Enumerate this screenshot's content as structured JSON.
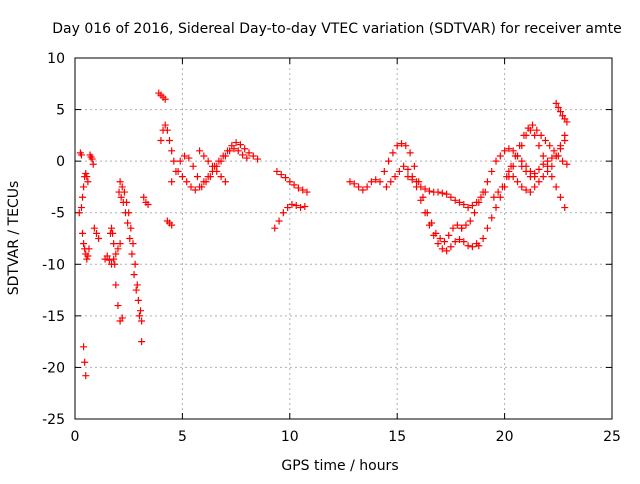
{
  "chart_data": {
    "type": "scatter",
    "title": "Day 016 of 2016, Sidereal Day-to-day VTEC variation (SDTVAR) for receiver amte",
    "xlabel": "GPS time / hours",
    "ylabel": "SDTVAR / TECUs",
    "xlim": [
      0,
      25
    ],
    "ylim": [
      -25,
      10
    ],
    "x_ticks": [
      0,
      5,
      10,
      15,
      20,
      25
    ],
    "y_ticks": [
      -25,
      -20,
      -15,
      -10,
      -5,
      0,
      5,
      10
    ],
    "grid": true,
    "marker": "+",
    "color": "#ff0000",
    "series": [
      {
        "name": "s1",
        "x": [
          0.2,
          0.3,
          0.35,
          0.4,
          0.45,
          0.5,
          0.55,
          0.6
        ],
        "y": [
          -5,
          -4.5,
          -3.5,
          -2.5,
          -1.5,
          -1.2,
          -1.5,
          -2
        ]
      },
      {
        "name": "s2",
        "x": [
          0.25,
          0.3,
          0.35,
          0.4,
          0.45,
          0.5,
          0.55,
          0.6,
          0.65
        ],
        "y": [
          0.8,
          0.6,
          -7,
          -8,
          -8.5,
          -9,
          -9.5,
          -9.2,
          -8.5
        ]
      },
      {
        "name": "s3",
        "x": [
          0.4,
          0.45,
          0.5
        ],
        "y": [
          -18,
          -19.5,
          -20.8
        ]
      },
      {
        "name": "s4",
        "x": [
          0.7,
          0.75,
          0.8,
          0.85
        ],
        "y": [
          0.6,
          0.4,
          0.2,
          -0.3
        ]
      },
      {
        "name": "s5",
        "x": [
          0.9,
          1.0,
          1.1
        ],
        "y": [
          -6.5,
          -7,
          -7.5
        ]
      },
      {
        "name": "s6",
        "x": [
          1.4,
          1.5,
          1.6,
          1.7,
          1.8,
          1.9,
          2.0,
          2.1
        ],
        "y": [
          -9.5,
          -9.2,
          -9.6,
          -10,
          -9.5,
          -9,
          -8.5,
          -8
        ]
      },
      {
        "name": "s7",
        "x": [
          1.65,
          1.7,
          1.75,
          1.8,
          1.85,
          1.9,
          2.0,
          2.1,
          2.2
        ],
        "y": [
          -7,
          -6.5,
          -7,
          -8,
          -10,
          -12,
          -14,
          -15.5,
          -15.2
        ]
      },
      {
        "name": "s8",
        "x": [
          2.1,
          2.2,
          2.3,
          2.4,
          2.5,
          2.6,
          2.7,
          2.8,
          2.9,
          3.0,
          3.1
        ],
        "y": [
          -2,
          -2.5,
          -3,
          -4,
          -5,
          -6.5,
          -8,
          -10,
          -12,
          -15,
          -17.5
        ]
      },
      {
        "name": "s9",
        "x": [
          2.05,
          2.15,
          2.25,
          2.35,
          2.45,
          2.55,
          2.65,
          2.75,
          2.85,
          2.95,
          3.05,
          3.1
        ],
        "y": [
          -3,
          -3.5,
          -4,
          -5,
          -6,
          -7.5,
          -9,
          -11,
          -12.5,
          -13.5,
          -14.5,
          -15.5
        ]
      },
      {
        "name": "s10",
        "x": [
          3.2,
          3.3,
          3.4
        ],
        "y": [
          -3.5,
          -4,
          -4.2
        ]
      },
      {
        "name": "s11",
        "x": [
          3.9,
          4.0,
          4.1,
          4.2
        ],
        "y": [
          6.6,
          6.4,
          6.2,
          6.0
        ]
      },
      {
        "name": "s12",
        "x": [
          4.0,
          4.1,
          4.2,
          4.3,
          4.4,
          4.5,
          4.6
        ],
        "y": [
          2,
          3,
          3.5,
          3,
          2,
          1,
          0
        ]
      },
      {
        "name": "s13",
        "x": [
          4.3,
          4.4,
          4.5
        ],
        "y": [
          -5.8,
          -6,
          -6.2
        ]
      },
      {
        "name": "s14",
        "x": [
          4.5,
          4.7,
          4.9,
          5.1,
          5.3,
          5.5,
          5.7,
          5.9,
          6.1,
          6.3,
          6.5,
          6.7,
          6.9,
          7.1,
          7.3,
          7.5,
          7.7,
          7.9,
          8.1,
          8.3,
          8.5
        ],
        "y": [
          -2,
          -1,
          0,
          0.5,
          0.3,
          -0.5,
          -1.5,
          -2.5,
          -2,
          -1.5,
          -0.5,
          0,
          0.5,
          1,
          1.5,
          1.8,
          1.6,
          1.2,
          0.8,
          0.5,
          0.2
        ]
      },
      {
        "name": "s15",
        "x": [
          4.8,
          5.0,
          5.2,
          5.4,
          5.6,
          5.8,
          6.0,
          6.2,
          6.4,
          6.6,
          6.8,
          7.0,
          7.2,
          7.4,
          7.6,
          7.8,
          8.0
        ],
        "y": [
          -1,
          -1.5,
          -2,
          -2.5,
          -2.8,
          -2.5,
          -2,
          -1.5,
          -1,
          -0.5,
          0,
          0.5,
          1,
          1.2,
          1,
          0.6,
          0.3
        ]
      },
      {
        "name": "s16",
        "x": [
          5.8,
          6.0,
          6.2,
          6.4,
          6.6,
          6.8,
          7.0
        ],
        "y": [
          1,
          0.5,
          0,
          -0.5,
          -1,
          -1.5,
          -2
        ]
      },
      {
        "name": "s17",
        "x": [
          9.3,
          9.5,
          9.7,
          9.9,
          10.1,
          10.3,
          10.5,
          10.7
        ],
        "y": [
          -6.5,
          -5.8,
          -5,
          -4.5,
          -4.2,
          -4.3,
          -4.5,
          -4.4
        ]
      },
      {
        "name": "s18",
        "x": [
          9.4,
          9.6,
          9.8,
          10.0,
          10.2,
          10.4,
          10.6,
          10.8
        ],
        "y": [
          -1,
          -1.3,
          -1.6,
          -2,
          -2.3,
          -2.6,
          -2.8,
          -3
        ]
      },
      {
        "name": "s19",
        "x": [
          12.8,
          13.0,
          13.2,
          13.4,
          13.6,
          13.8,
          14.0
        ],
        "y": [
          -2,
          -2.2,
          -2.5,
          -2.8,
          -2.5,
          -2,
          -1.8
        ]
      },
      {
        "name": "s20",
        "x": [
          14.2,
          14.4,
          14.6,
          14.8,
          15.0,
          15.2,
          15.4,
          15.6,
          15.8,
          16.0,
          16.2,
          16.4,
          16.6,
          16.8,
          17.0,
          17.2,
          17.4,
          17.6,
          17.8,
          18.0
        ],
        "y": [
          -2,
          -1,
          0,
          0.8,
          1.5,
          1.7,
          1.5,
          0.8,
          -0.5,
          -2,
          -3.5,
          -5,
          -6,
          -7,
          -7.5,
          -7.8,
          -7.2,
          -6.5,
          -6.2,
          -6.5
        ]
      },
      {
        "name": "s21",
        "x": [
          14.5,
          14.7,
          14.9,
          15.1,
          15.3,
          15.5,
          15.7,
          15.9,
          16.1,
          16.3,
          16.5,
          16.7,
          16.9,
          17.1,
          17.3,
          17.5,
          17.7,
          17.9,
          18.1,
          18.3,
          18.5,
          18.7
        ],
        "y": [
          -2.5,
          -2,
          -1.5,
          -1,
          -0.5,
          -0.8,
          -1.5,
          -2.5,
          -3.8,
          -5,
          -6.2,
          -7.2,
          -8,
          -8.5,
          -8.7,
          -8.3,
          -7.8,
          -7.6,
          -7.8,
          -8.2,
          -8.3,
          -8
        ]
      },
      {
        "name": "s22",
        "x": [
          15.5,
          15.7,
          15.9,
          16.1,
          16.3,
          16.5,
          16.7,
          16.9,
          17.1,
          17.3,
          17.5,
          17.7,
          17.9,
          18.1,
          18.3,
          18.5,
          18.7,
          18.9,
          19.1
        ],
        "y": [
          -1.5,
          -1.8,
          -2,
          -2.5,
          -2.7,
          -2.9,
          -3,
          -3,
          -3.1,
          -3.2,
          -3.5,
          -3.8,
          -4,
          -4.2,
          -4.5,
          -4.3,
          -4,
          -3.5,
          -3
        ]
      },
      {
        "name": "s23",
        "x": [
          18.0,
          18.2,
          18.4,
          18.6,
          18.8,
          19.0,
          19.2,
          19.4,
          19.6,
          19.8,
          20.0,
          20.2,
          20.4,
          20.6,
          20.8,
          21.0,
          21.2,
          21.4
        ],
        "y": [
          -6.5,
          -6.2,
          -5.8,
          -5,
          -4,
          -3,
          -2,
          -1,
          0,
          0.5,
          1,
          1.2,
          1,
          0.5,
          0,
          -0.5,
          -1,
          -1.5
        ]
      },
      {
        "name": "s24",
        "x": [
          18.8,
          19.0,
          19.2,
          19.4,
          19.6,
          19.8,
          20.0,
          20.2,
          20.4,
          20.6,
          20.8,
          21.0,
          21.2,
          21.4,
          21.6,
          21.8,
          22.0,
          22.2,
          22.4,
          22.6,
          22.8
        ],
        "y": [
          -8.2,
          -7.5,
          -6.5,
          -5.5,
          -4.5,
          -3.5,
          -2.5,
          -1.5,
          -0.5,
          0.5,
          1.5,
          2.5,
          3,
          2.5,
          1.5,
          0.5,
          -0.5,
          -1.5,
          -2.5,
          -3.5,
          -4.5
        ]
      },
      {
        "name": "s25",
        "x": [
          19.5,
          19.7,
          19.9,
          20.1,
          20.3,
          20.5,
          20.7,
          20.9,
          21.1,
          21.3,
          21.5,
          21.7,
          21.9,
          22.1,
          22.3,
          22.5,
          22.7,
          22.9
        ],
        "y": [
          -3.5,
          -3,
          -2.5,
          -1.5,
          -0.5,
          0.5,
          1.5,
          2.5,
          3.2,
          3.5,
          3,
          2.5,
          2,
          1.5,
          1,
          0.5,
          0,
          -0.3
        ]
      },
      {
        "name": "s26",
        "x": [
          20.2,
          20.4,
          20.6,
          20.8,
          21.0,
          21.2,
          21.4,
          21.6,
          21.8,
          22.0,
          22.2,
          22.4,
          22.6,
          22.8
        ],
        "y": [
          -1,
          -1.5,
          -2,
          -2.5,
          -2.8,
          -3,
          -2.5,
          -2,
          -1.5,
          -1,
          -0.5,
          0.5,
          1.5,
          2.5
        ]
      },
      {
        "name": "s27",
        "x": [
          20.8,
          21.0,
          21.2,
          21.4,
          21.6,
          21.8,
          22.0,
          22.2,
          22.4,
          22.6,
          22.8
        ],
        "y": [
          -0.5,
          -1,
          -1.5,
          -1.2,
          -0.8,
          -0.3,
          0,
          0.3,
          0.5,
          1.2,
          2
        ]
      },
      {
        "name": "s28",
        "x": [
          22.4,
          22.5,
          22.6,
          22.7,
          22.8,
          22.9
        ],
        "y": [
          5.6,
          5.2,
          4.8,
          4.4,
          4.1,
          3.8
        ]
      }
    ]
  }
}
